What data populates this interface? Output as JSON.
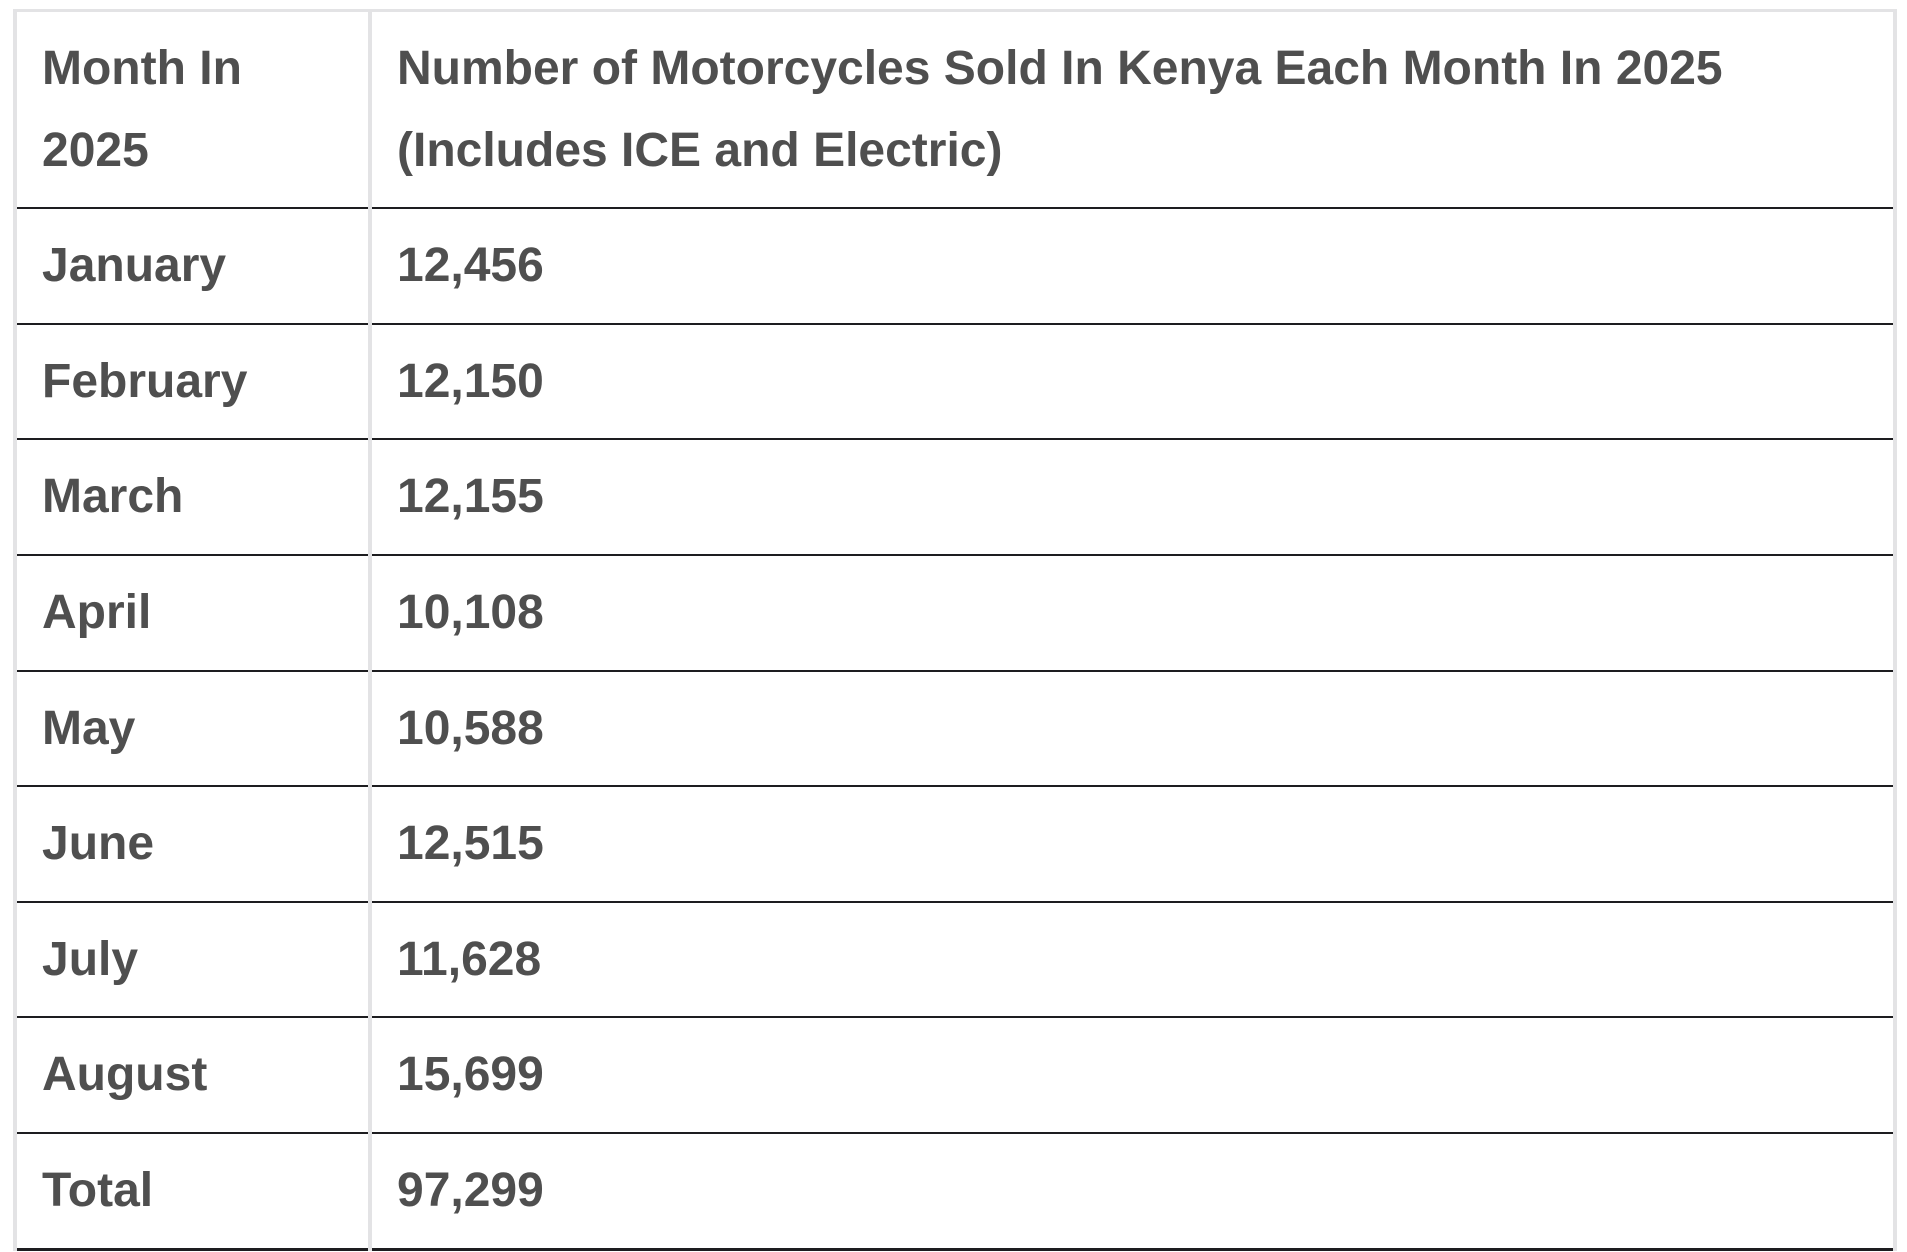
{
  "chart_data": {
    "type": "table",
    "title": "Number of Motorcycles Sold In Kenya Each Month In 2025 (Includes ICE and Electric)",
    "columns": [
      "Month In 2025",
      "Number of Motorcycles Sold In Kenya Each Month In 2025 (Includes ICE and Electric)"
    ],
    "categories": [
      "January",
      "February",
      "March",
      "April",
      "May",
      "June",
      "July",
      "August",
      "Total"
    ],
    "values": [
      12456,
      12150,
      12155,
      10108,
      10588,
      12515,
      11628,
      15699,
      97299
    ]
  },
  "table": {
    "header": {
      "col1": "Month In 2025",
      "col2_line1": "Number of Motorcycles Sold In Kenya Each Month In 2025",
      "col2_line2": "(Includes ICE and Electric)"
    },
    "rows": [
      {
        "month": "January",
        "value": "12,456"
      },
      {
        "month": "February",
        "value": "12,150"
      },
      {
        "month": "March",
        "value": "12,155"
      },
      {
        "month": "April",
        "value": "10,108"
      },
      {
        "month": "May",
        "value": "10,588"
      },
      {
        "month": "June",
        "value": "12,515"
      },
      {
        "month": "July",
        "value": "11,628"
      },
      {
        "month": "August",
        "value": "15,699"
      },
      {
        "month": "Total",
        "value": "97,299"
      }
    ],
    "colors": {
      "text": "#4f4f4f",
      "row_border": "#1d1d20",
      "outer_border": "#e3e3e5"
    }
  }
}
